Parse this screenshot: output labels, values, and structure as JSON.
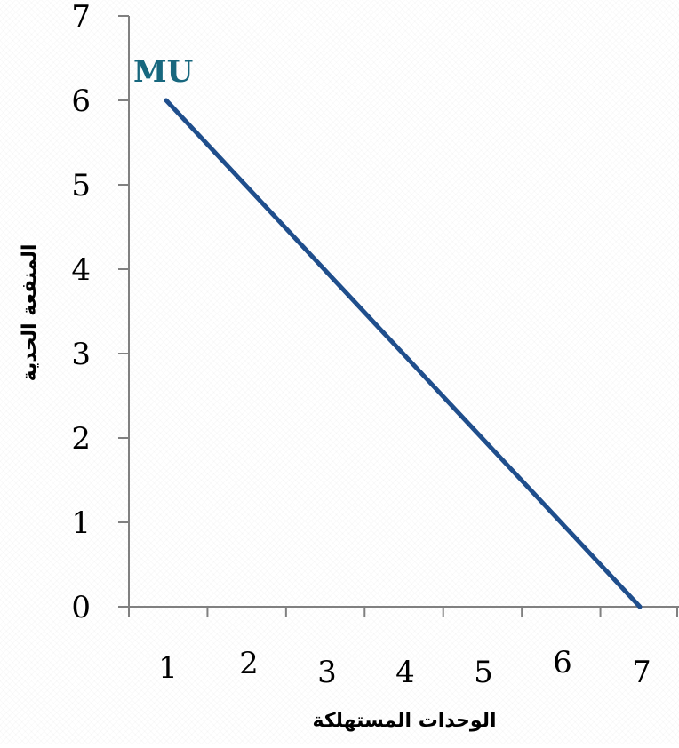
{
  "chart_data": {
    "type": "line",
    "xlabel": "الوحدات المستهلكة",
    "ylabel": "المنفعة الحدية",
    "x_ticks": [
      "1",
      "2",
      "3",
      "4",
      "5",
      "6",
      "7"
    ],
    "y_ticks": [
      "0",
      "1",
      "2",
      "3",
      "4",
      "5",
      "6",
      "7"
    ],
    "xlim": [
      0.5,
      7.5
    ],
    "ylim": [
      0,
      7
    ],
    "grid": false,
    "series": [
      {
        "name": "MU",
        "color": "#1f4e8c",
        "label_color": "#17677e",
        "x": [
          1,
          7
        ],
        "y": [
          6,
          0
        ]
      }
    ]
  }
}
